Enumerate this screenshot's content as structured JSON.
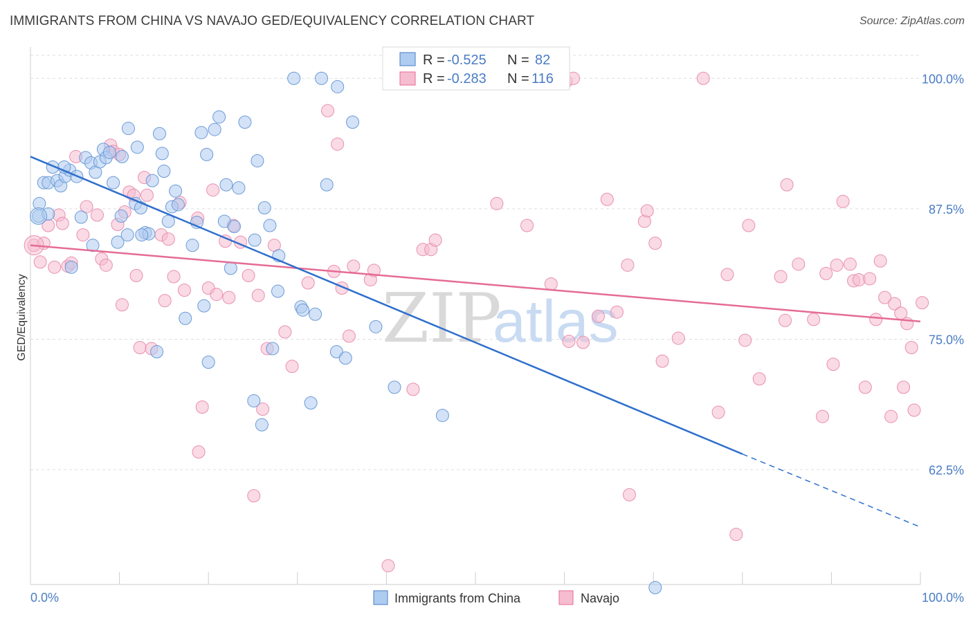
{
  "title": "IMMIGRANTS FROM CHINA VS NAVAJO GED/EQUIVALENCY CORRELATION CHART",
  "source": "Source: ZipAtlas.com",
  "watermark": {
    "zip": "ZIP",
    "atlas": "atlas"
  },
  "colors": {
    "blue": "#4a7cc4",
    "blue_fill": "#aecbf0",
    "blue_line": "#2e6fcc",
    "pink_fill": "#f6bcd0",
    "pink_line": "#e56b95",
    "grid": "#dddddd"
  },
  "legend_box": {
    "blue": {
      "r_label": "R = ",
      "r_value": "-0.525",
      "n_label": "N = ",
      "n_value": "82"
    },
    "pink": {
      "r_label": "R = ",
      "r_value": "-0.283",
      "n_label": "N = ",
      "n_value": "116"
    }
  },
  "chart_data": {
    "type": "scatter",
    "title": "IMMIGRANTS FROM CHINA VS NAVAJO GED/EQUIVALENCY CORRELATION CHART",
    "xlabel": "",
    "ylabel": "GED/Equivalency",
    "xlim": [
      0,
      100
    ],
    "ylim": [
      51.5,
      103
    ],
    "x_tick_labels": [
      "0.0%",
      "100.0%"
    ],
    "y_ticks": [
      62.5,
      75.0,
      87.5,
      100.0
    ],
    "y_tick_labels": [
      "62.5%",
      "75.0%",
      "87.5%",
      "100.0%"
    ],
    "grid": true,
    "legend": "top-center",
    "series": [
      {
        "name": "Immigrants from China",
        "color": "#aecbf0",
        "trend": {
          "x0": 0,
          "y0": 92.5,
          "x1": 80,
          "y1": 64.0,
          "dash_to_x": 100,
          "dash_to_y": 57.0
        },
        "points": [
          [
            1.0,
            88.0
          ],
          [
            0.9,
            86.8
          ],
          [
            1.5,
            90.0
          ],
          [
            2.0,
            90.0
          ],
          [
            2.5,
            91.5
          ],
          [
            3.0,
            90.2
          ],
          [
            3.4,
            89.7
          ],
          [
            3.9,
            90.6
          ],
          [
            4.4,
            91.2
          ],
          [
            5.2,
            90.6
          ],
          [
            5.7,
            86.7
          ],
          [
            6.2,
            92.4
          ],
          [
            6.8,
            91.9
          ],
          [
            7.3,
            91.0
          ],
          [
            7.8,
            92.0
          ],
          [
            8.2,
            93.2
          ],
          [
            8.5,
            92.4
          ],
          [
            8.9,
            92.9
          ],
          [
            9.3,
            90.0
          ],
          [
            9.8,
            84.3
          ],
          [
            10.2,
            86.8
          ],
          [
            10.3,
            92.5
          ],
          [
            10.9,
            85.0
          ],
          [
            11.0,
            95.2
          ],
          [
            11.8,
            88.0
          ],
          [
            12.0,
            93.4
          ],
          [
            12.4,
            87.6
          ],
          [
            12.9,
            85.2
          ],
          [
            13.3,
            85.1
          ],
          [
            13.7,
            90.2
          ],
          [
            14.2,
            73.8
          ],
          [
            14.5,
            94.7
          ],
          [
            14.8,
            92.8
          ],
          [
            15.0,
            91.1
          ],
          [
            15.5,
            86.3
          ],
          [
            15.9,
            87.7
          ],
          [
            16.3,
            89.2
          ],
          [
            16.6,
            87.9
          ],
          [
            17.4,
            77.0
          ],
          [
            18.2,
            84.0
          ],
          [
            18.7,
            86.2
          ],
          [
            19.2,
            94.8
          ],
          [
            19.5,
            78.2
          ],
          [
            19.8,
            92.7
          ],
          [
            20.0,
            72.8
          ],
          [
            20.7,
            95.1
          ],
          [
            21.2,
            96.3
          ],
          [
            21.8,
            86.3
          ],
          [
            22.0,
            89.8
          ],
          [
            22.5,
            81.8
          ],
          [
            22.9,
            85.8
          ],
          [
            23.4,
            89.5
          ],
          [
            24.1,
            95.8
          ],
          [
            25.1,
            69.1
          ],
          [
            25.2,
            84.5
          ],
          [
            25.5,
            92.1
          ],
          [
            26.0,
            66.8
          ],
          [
            26.3,
            87.6
          ],
          [
            26.9,
            85.9
          ],
          [
            27.2,
            74.1
          ],
          [
            27.8,
            79.6
          ],
          [
            27.9,
            83.0
          ],
          [
            29.6,
            100.0
          ],
          [
            30.4,
            78.1
          ],
          [
            30.6,
            77.8
          ],
          [
            31.5,
            68.9
          ],
          [
            32.0,
            77.4
          ],
          [
            32.7,
            100.0
          ],
          [
            33.3,
            89.8
          ],
          [
            34.4,
            73.8
          ],
          [
            34.5,
            99.2
          ],
          [
            35.4,
            73.2
          ],
          [
            36.2,
            95.8
          ],
          [
            38.8,
            76.2
          ],
          [
            40.9,
            70.4
          ],
          [
            46.3,
            67.7
          ],
          [
            70.2,
            51.2
          ],
          [
            2.0,
            87.0
          ],
          [
            4.6,
            81.9
          ],
          [
            7.0,
            84.0
          ],
          [
            12.5,
            85.0
          ],
          [
            3.8,
            91.5
          ]
        ]
      },
      {
        "name": "Navajo",
        "color": "#f6bcd0",
        "trend": {
          "x0": 0,
          "y0": 84.0,
          "x1": 100,
          "y1": 76.7
        },
        "points": [
          [
            0.4,
            84.0
          ],
          [
            1.1,
            82.4
          ],
          [
            1.5,
            84.2
          ],
          [
            2.0,
            85.9
          ],
          [
            2.7,
            81.9
          ],
          [
            3.2,
            86.9
          ],
          [
            3.6,
            86.1
          ],
          [
            4.2,
            82.0
          ],
          [
            4.6,
            82.3
          ],
          [
            5.1,
            92.5
          ],
          [
            5.9,
            85.0
          ],
          [
            6.3,
            87.7
          ],
          [
            7.5,
            86.9
          ],
          [
            8.0,
            82.7
          ],
          [
            8.5,
            82.1
          ],
          [
            9.0,
            93.6
          ],
          [
            9.3,
            93.0
          ],
          [
            9.8,
            86.0
          ],
          [
            10.0,
            92.7
          ],
          [
            10.3,
            78.3
          ],
          [
            10.6,
            87.2
          ],
          [
            11.1,
            89.1
          ],
          [
            11.6,
            88.8
          ],
          [
            11.9,
            81.1
          ],
          [
            12.3,
            74.2
          ],
          [
            12.8,
            90.5
          ],
          [
            13.1,
            88.8
          ],
          [
            13.6,
            74.1
          ],
          [
            14.7,
            85.0
          ],
          [
            15.1,
            78.7
          ],
          [
            15.5,
            84.6
          ],
          [
            16.1,
            81.0
          ],
          [
            16.8,
            88.1
          ],
          [
            17.3,
            79.7
          ],
          [
            18.8,
            86.6
          ],
          [
            18.9,
            64.2
          ],
          [
            19.3,
            68.5
          ],
          [
            20.0,
            79.9
          ],
          [
            20.5,
            89.3
          ],
          [
            20.9,
            79.3
          ],
          [
            21.9,
            84.4
          ],
          [
            22.3,
            79.0
          ],
          [
            22.8,
            85.9
          ],
          [
            23.6,
            84.3
          ],
          [
            24.5,
            81.1
          ],
          [
            25.1,
            60.0
          ],
          [
            25.6,
            79.2
          ],
          [
            26.1,
            68.3
          ],
          [
            26.6,
            74.1
          ],
          [
            27.4,
            84.0
          ],
          [
            28.6,
            75.7
          ],
          [
            29.4,
            72.4
          ],
          [
            31.2,
            80.4
          ],
          [
            33.4,
            96.9
          ],
          [
            34.1,
            81.5
          ],
          [
            34.5,
            93.7
          ],
          [
            35.0,
            79.9
          ],
          [
            35.8,
            75.3
          ],
          [
            36.3,
            82.0
          ],
          [
            38.2,
            80.7
          ],
          [
            38.6,
            81.6
          ],
          [
            40.2,
            53.3
          ],
          [
            43.0,
            70.2
          ],
          [
            44.1,
            83.6
          ],
          [
            45.0,
            83.6
          ],
          [
            45.5,
            84.5
          ],
          [
            52.4,
            88.0
          ],
          [
            55.8,
            85.9
          ],
          [
            58.5,
            80.3
          ],
          [
            60.2,
            99.7
          ],
          [
            61.0,
            100.0
          ],
          [
            62.1,
            74.7
          ],
          [
            63.8,
            77.2
          ],
          [
            64.8,
            88.4
          ],
          [
            65.9,
            77.6
          ],
          [
            67.1,
            82.1
          ],
          [
            67.3,
            60.1
          ],
          [
            69.0,
            86.3
          ],
          [
            69.3,
            87.3
          ],
          [
            70.2,
            84.2
          ],
          [
            71.0,
            72.9
          ],
          [
            72.8,
            75.1
          ],
          [
            75.6,
            100.0
          ],
          [
            77.3,
            68.0
          ],
          [
            78.3,
            81.2
          ],
          [
            79.3,
            56.3
          ],
          [
            80.3,
            74.9
          ],
          [
            80.7,
            85.9
          ],
          [
            81.9,
            71.2
          ],
          [
            84.3,
            81.0
          ],
          [
            84.8,
            76.8
          ],
          [
            85.0,
            89.8
          ],
          [
            86.3,
            82.2
          ],
          [
            88.0,
            76.9
          ],
          [
            89.0,
            67.6
          ],
          [
            89.4,
            81.3
          ],
          [
            90.2,
            72.6
          ],
          [
            90.6,
            82.1
          ],
          [
            91.3,
            88.2
          ],
          [
            92.1,
            82.2
          ],
          [
            92.5,
            80.6
          ],
          [
            93.1,
            80.7
          ],
          [
            93.8,
            70.4
          ],
          [
            94.3,
            80.8
          ],
          [
            95.0,
            76.9
          ],
          [
            95.5,
            82.5
          ],
          [
            96.0,
            79.0
          ],
          [
            96.7,
            67.6
          ],
          [
            97.1,
            78.4
          ],
          [
            97.8,
            77.5
          ],
          [
            98.1,
            70.4
          ],
          [
            98.5,
            76.5
          ],
          [
            99.0,
            74.2
          ],
          [
            99.3,
            68.2
          ],
          [
            100.2,
            78.5
          ],
          [
            60.5,
            74.8
          ]
        ]
      }
    ]
  }
}
